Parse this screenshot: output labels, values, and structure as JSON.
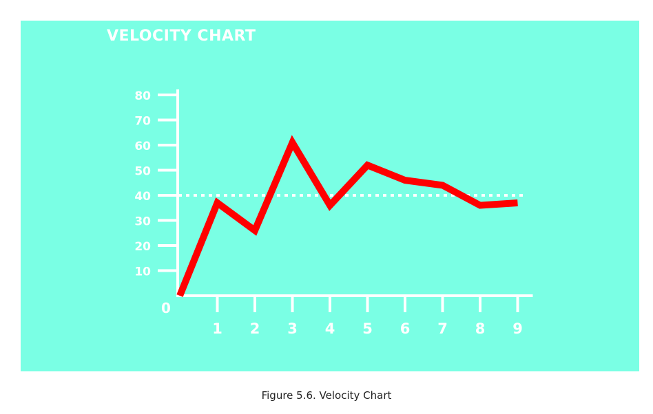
{
  "caption": "Figure 5.6. Velocity Chart",
  "colors": {
    "background": "#7affe4",
    "axis": "#ffffff",
    "series": "#ff0000",
    "reference_line": "#ffffff",
    "caption_text": "#222222"
  },
  "chart_data": {
    "type": "line",
    "title": "VELOCITY CHART",
    "xlabel": "",
    "ylabel": "",
    "x": [
      0,
      1,
      2,
      3,
      4,
      5,
      6,
      7,
      8,
      9
    ],
    "x_tick_labels": [
      "1",
      "2",
      "3",
      "4",
      "5",
      "6",
      "7",
      "8",
      "9"
    ],
    "origin_label": "0",
    "y_tick_labels": [
      "10",
      "20",
      "30",
      "40",
      "50",
      "60",
      "70",
      "80"
    ],
    "y_ticks": [
      10,
      20,
      30,
      40,
      50,
      60,
      70,
      80
    ],
    "xlim": [
      0,
      9
    ],
    "ylim": [
      0,
      80
    ],
    "grid": false,
    "series": [
      {
        "values": [
          0,
          37,
          26,
          61,
          36,
          52,
          46,
          44,
          36,
          37
        ]
      }
    ],
    "reference_line": {
      "y": 40,
      "style": "dotted"
    }
  }
}
